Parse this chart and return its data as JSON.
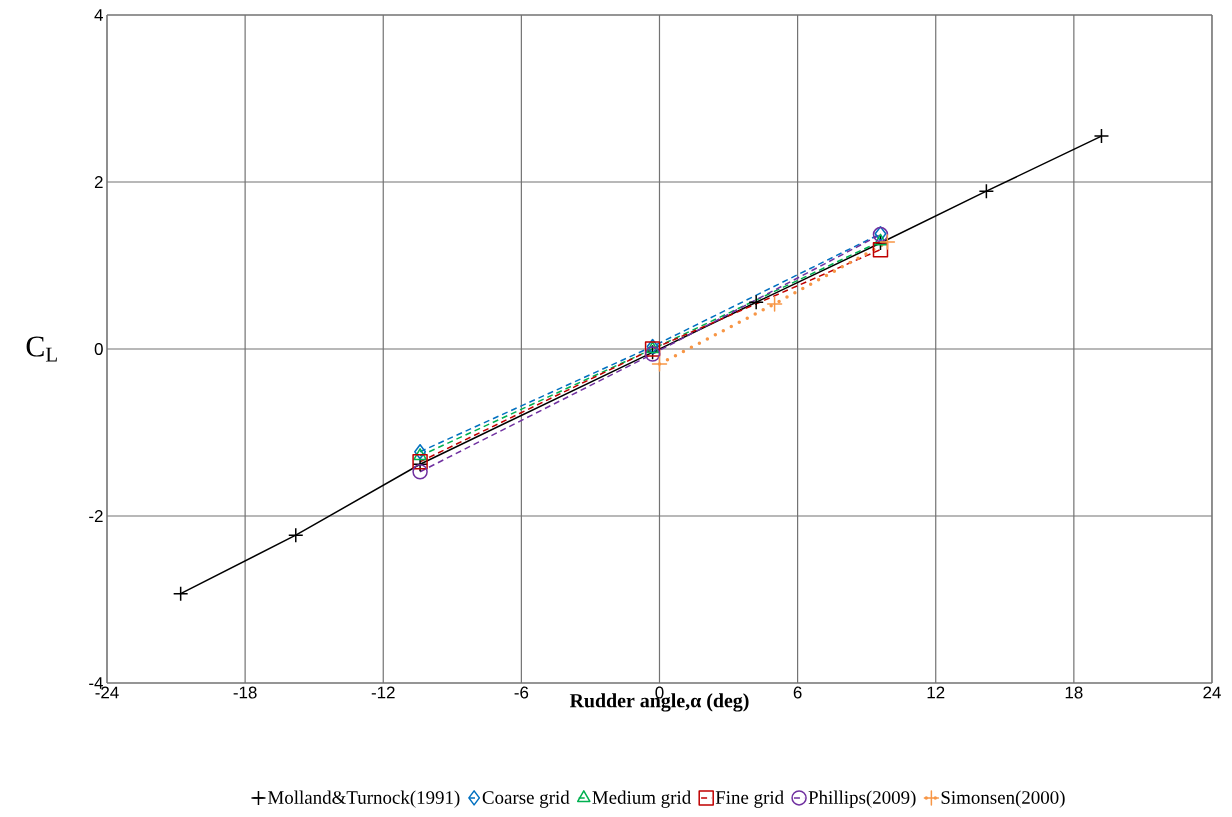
{
  "chart_data": {
    "type": "line",
    "xlabel": "Rudder angle,α (deg)",
    "ylabel": "C$_{L}$",
    "xlim": [
      -24,
      24
    ],
    "xticks": [
      -24,
      -18,
      -12,
      -6,
      0,
      6,
      12,
      18,
      24
    ],
    "ylim": [
      -4,
      4
    ],
    "yticks": [
      -4,
      -2,
      0,
      2,
      4
    ],
    "grid": true,
    "legend": "bottom",
    "series": [
      {
        "name": "Molland&Turnock(1991)",
        "color": "#000000",
        "marker": "cross",
        "line_style": "solid",
        "x": [
          -20.8,
          -15.8,
          -10.4,
          -0.3,
          4.2,
          9.6,
          14.2,
          19.2
        ],
        "values": [
          -2.93,
          -2.23,
          -1.38,
          -0.04,
          0.56,
          1.27,
          1.89,
          2.55
        ]
      },
      {
        "name": "Coarse grid",
        "color": "#0070c0",
        "marker": "diamond",
        "line_style": "dashed",
        "x": [
          -10.4,
          -0.3,
          9.6
        ],
        "values": [
          -1.23,
          0.03,
          1.38
        ]
      },
      {
        "name": "Medium grid",
        "color": "#00b050",
        "marker": "triangle",
        "line_style": "dashed",
        "x": [
          -10.4,
          -0.3,
          9.6
        ],
        "values": [
          -1.28,
          0.0,
          1.29
        ]
      },
      {
        "name": "Fine grid",
        "color": "#c00000",
        "marker": "square",
        "line_style": "dashed",
        "x": [
          -10.4,
          -0.3,
          9.6
        ],
        "values": [
          -1.35,
          0.0,
          1.19
        ]
      },
      {
        "name": "Phillips(2009)",
        "color": "#7030a0",
        "marker": "circle",
        "line_style": "dashed",
        "x": [
          -10.4,
          -0.3,
          9.6
        ],
        "values": [
          -1.47,
          -0.06,
          1.37
        ]
      },
      {
        "name": "Simonsen(2000)",
        "color": "#f79646",
        "marker": "cross",
        "line_style": "dotted",
        "x": [
          0,
          5,
          9.9
        ],
        "values": [
          -0.18,
          0.54,
          1.28
        ]
      }
    ]
  }
}
